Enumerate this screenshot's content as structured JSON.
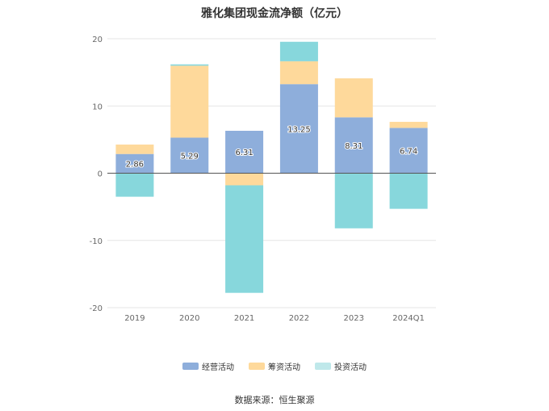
{
  "chart_data": {
    "type": "bar",
    "stacked": true,
    "title": "雅化集团现金流净额（亿元）",
    "categories": [
      "2019",
      "2020",
      "2021",
      "2022",
      "2023",
      "2024Q1"
    ],
    "ylim": [
      -20,
      20
    ],
    "yticks": [
      20,
      10,
      0,
      -10,
      -20
    ],
    "grid": true,
    "legend_position": "bottom",
    "series": [
      {
        "name": "经营活动",
        "color": "#8eaedb",
        "values": [
          2.86,
          5.29,
          6.31,
          13.25,
          8.31,
          6.74
        ]
      },
      {
        "name": "筹资活动",
        "color": "#fed99b",
        "values": [
          1.4,
          10.7,
          -1.8,
          3.4,
          5.8,
          0.9
        ]
      },
      {
        "name": "投资活动",
        "color": "#87d7dc",
        "values": [
          -3.5,
          0.2,
          -16.0,
          2.9,
          -8.2,
          -5.3
        ]
      }
    ],
    "data_labels": [
      "2.86",
      "5.29",
      "6.31",
      "13.25",
      "8.31",
      "6.74"
    ]
  },
  "source": "数据来源：恒生聚源"
}
